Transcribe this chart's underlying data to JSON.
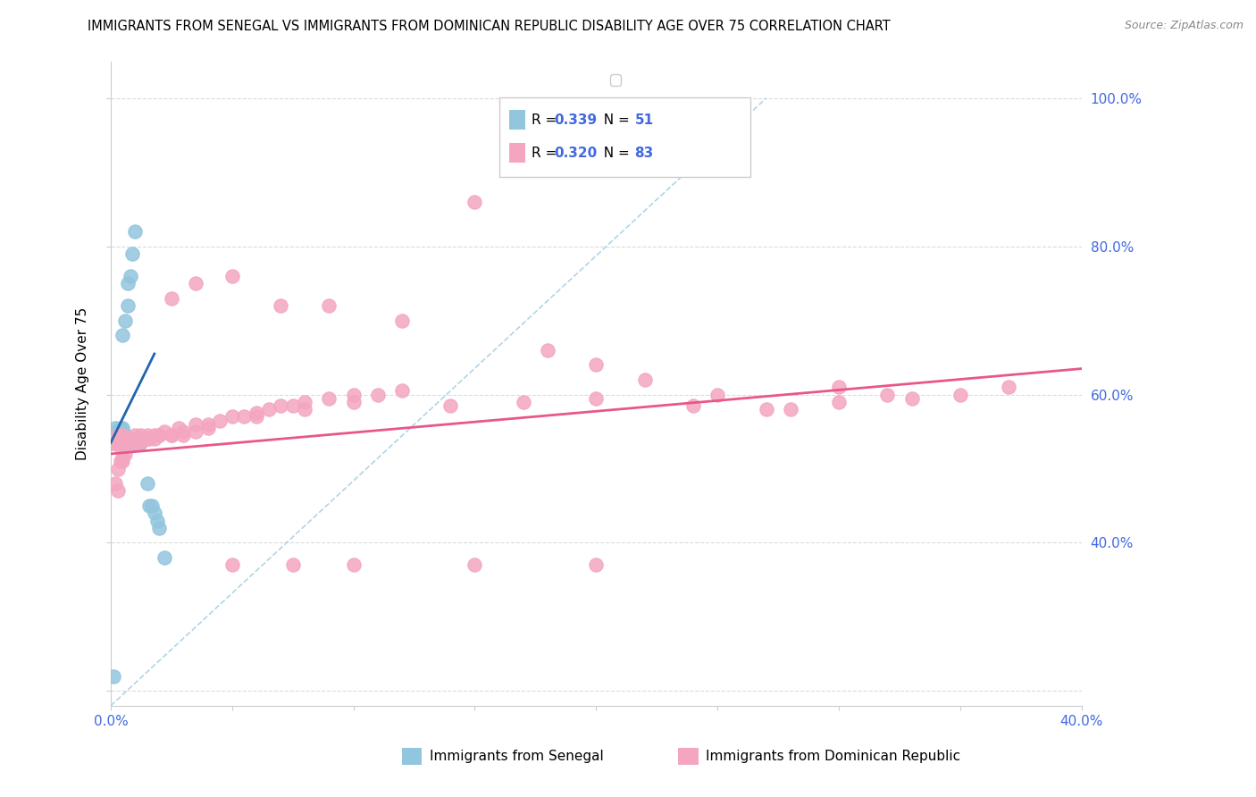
{
  "title": "IMMIGRANTS FROM SENEGAL VS IMMIGRANTS FROM DOMINICAN REPUBLIC DISABILITY AGE OVER 75 CORRELATION CHART",
  "source": "Source: ZipAtlas.com",
  "ylabel": "Disability Age Over 75",
  "xlim": [
    0.0,
    0.4
  ],
  "ylim": [
    0.18,
    1.05
  ],
  "color_senegal": "#92c5de",
  "color_dominican": "#f4a6c0",
  "color_trend_senegal": "#2166ac",
  "color_trend_dominican": "#e8578a",
  "color_diag": "#9ecae1",
  "color_axis_text": "#4169E1",
  "background_color": "#ffffff",
  "grid_color": "#cccccc",
  "senegal_x": [
    0.001,
    0.001,
    0.001,
    0.002,
    0.002,
    0.002,
    0.002,
    0.003,
    0.003,
    0.003,
    0.003,
    0.003,
    0.004,
    0.004,
    0.004,
    0.004,
    0.005,
    0.005,
    0.005,
    0.005,
    0.005,
    0.005,
    0.006,
    0.006,
    0.006,
    0.006,
    0.007,
    0.007,
    0.007,
    0.007,
    0.008,
    0.008,
    0.008,
    0.009,
    0.009,
    0.009,
    0.01,
    0.01,
    0.01,
    0.011,
    0.011,
    0.012,
    0.013,
    0.014,
    0.015,
    0.016,
    0.017,
    0.018,
    0.019,
    0.02,
    0.022
  ],
  "senegal_y": [
    0.535,
    0.54,
    0.22,
    0.54,
    0.545,
    0.55,
    0.555,
    0.54,
    0.545,
    0.548,
    0.545,
    0.55,
    0.54,
    0.545,
    0.55,
    0.555,
    0.535,
    0.54,
    0.545,
    0.55,
    0.555,
    0.68,
    0.535,
    0.54,
    0.545,
    0.7,
    0.535,
    0.54,
    0.72,
    0.75,
    0.535,
    0.54,
    0.76,
    0.535,
    0.54,
    0.79,
    0.535,
    0.54,
    0.82,
    0.535,
    0.54,
    0.535,
    0.54,
    0.54,
    0.48,
    0.45,
    0.45,
    0.44,
    0.43,
    0.42,
    0.38
  ],
  "dominican_x": [
    0.001,
    0.002,
    0.002,
    0.003,
    0.003,
    0.004,
    0.004,
    0.005,
    0.005,
    0.006,
    0.006,
    0.007,
    0.008,
    0.009,
    0.01,
    0.011,
    0.012,
    0.013,
    0.015,
    0.016,
    0.018,
    0.02,
    0.022,
    0.025,
    0.028,
    0.03,
    0.035,
    0.04,
    0.045,
    0.05,
    0.055,
    0.06,
    0.065,
    0.07,
    0.075,
    0.08,
    0.09,
    0.1,
    0.11,
    0.12,
    0.025,
    0.035,
    0.05,
    0.07,
    0.09,
    0.12,
    0.15,
    0.18,
    0.2,
    0.22,
    0.25,
    0.28,
    0.3,
    0.32,
    0.35,
    0.37,
    0.003,
    0.005,
    0.015,
    0.02,
    0.03,
    0.04,
    0.06,
    0.08,
    0.1,
    0.14,
    0.17,
    0.2,
    0.24,
    0.27,
    0.3,
    0.33,
    0.004,
    0.008,
    0.012,
    0.018,
    0.025,
    0.035,
    0.05,
    0.075,
    0.1,
    0.15,
    0.2
  ],
  "dominican_y": [
    0.535,
    0.54,
    0.48,
    0.545,
    0.5,
    0.54,
    0.51,
    0.545,
    0.515,
    0.54,
    0.52,
    0.54,
    0.54,
    0.535,
    0.545,
    0.54,
    0.545,
    0.54,
    0.545,
    0.54,
    0.545,
    0.545,
    0.55,
    0.545,
    0.555,
    0.55,
    0.56,
    0.56,
    0.565,
    0.57,
    0.57,
    0.575,
    0.58,
    0.585,
    0.585,
    0.59,
    0.595,
    0.6,
    0.6,
    0.605,
    0.73,
    0.75,
    0.76,
    0.72,
    0.72,
    0.7,
    0.86,
    0.66,
    0.64,
    0.62,
    0.6,
    0.58,
    0.61,
    0.6,
    0.6,
    0.61,
    0.47,
    0.51,
    0.54,
    0.545,
    0.545,
    0.555,
    0.57,
    0.58,
    0.59,
    0.585,
    0.59,
    0.595,
    0.585,
    0.58,
    0.59,
    0.595,
    0.53,
    0.54,
    0.535,
    0.54,
    0.545,
    0.55,
    0.37,
    0.37,
    0.37,
    0.37,
    0.37
  ]
}
